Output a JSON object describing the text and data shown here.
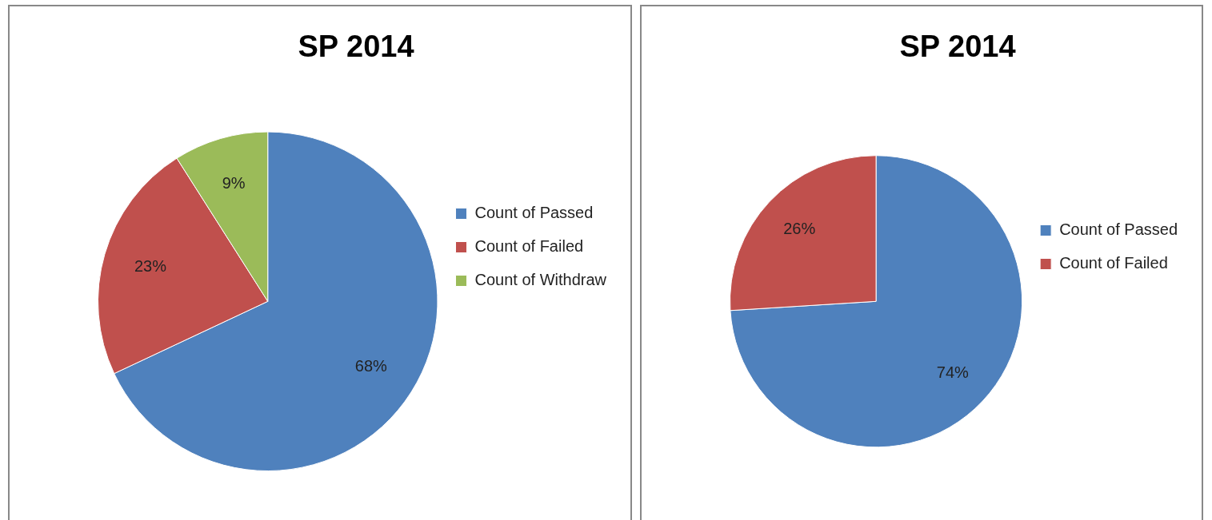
{
  "chart_data": [
    {
      "type": "pie",
      "title": "SP 2014",
      "categories": [
        "Count of Passed",
        "Count of Failed",
        "Count of Withdraw"
      ],
      "values": [
        68,
        23,
        9
      ],
      "colors": [
        "#4f81bd",
        "#c0504d",
        "#9bbb59"
      ],
      "value_labels": [
        "68%",
        "23%",
        "9%"
      ],
      "legend": "right"
    },
    {
      "type": "pie",
      "title": "SP 2014",
      "categories": [
        "Count of Passed",
        "Count of Failed"
      ],
      "values": [
        74,
        26
      ],
      "colors": [
        "#4f81bd",
        "#c0504d"
      ],
      "value_labels": [
        "74%",
        "26%"
      ],
      "legend": "right"
    }
  ]
}
